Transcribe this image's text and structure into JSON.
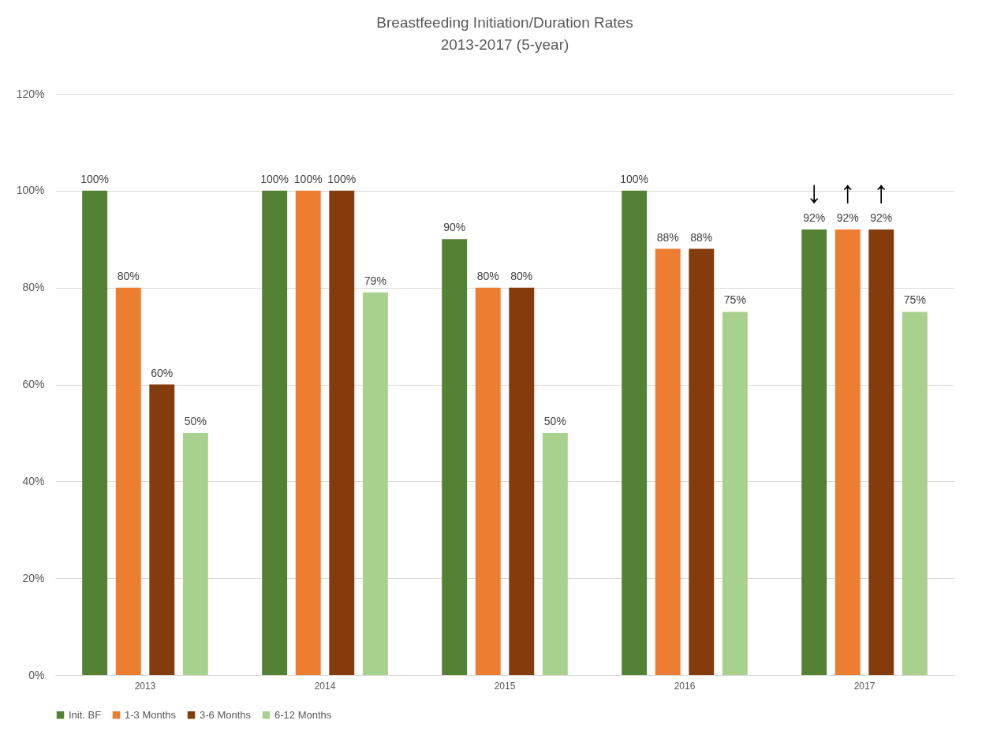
{
  "chart_data": {
    "type": "bar",
    "title": [
      "Breastfeeding Initiation/Duration Rates",
      "2013-2017 (5-year)"
    ],
    "categories": [
      "2013",
      "2014",
      "2015",
      "2016",
      "2017"
    ],
    "series": [
      {
        "name": "Init. BF",
        "color": "#548235",
        "values": [
          100,
          100,
          90,
          100,
          92
        ],
        "value_labels": [
          "100%",
          "100%",
          "90%",
          "100%",
          "92%"
        ]
      },
      {
        "name": "1-3 Months",
        "color": "#ed7d31",
        "values": [
          80,
          100,
          80,
          88,
          92
        ],
        "value_labels": [
          "80%",
          "100%",
          "80%",
          "88%",
          "92%"
        ]
      },
      {
        "name": "3-6 Months",
        "color": "#843c0c",
        "values": [
          60,
          100,
          80,
          88,
          92
        ],
        "value_labels": [
          "60%",
          "100%",
          "80%",
          "88%",
          "92%"
        ]
      },
      {
        "name": "6-12 Months",
        "color": "#a9d18e",
        "values": [
          50,
          79,
          50,
          75,
          75
        ],
        "value_labels": [
          "50%",
          "79%",
          "50%",
          "75%",
          "75%"
        ]
      }
    ],
    "ylim": [
      0,
      120
    ],
    "yticks": [
      {
        "value": 0,
        "label": "0%"
      },
      {
        "value": 20,
        "label": "20%"
      },
      {
        "value": 40,
        "label": "40%"
      },
      {
        "value": 60,
        "label": "60%"
      },
      {
        "value": 80,
        "label": "80%"
      },
      {
        "value": 100,
        "label": "100%"
      },
      {
        "value": 120,
        "label": "120%"
      }
    ],
    "grid": "y",
    "legend": "bottom",
    "annotations": [
      "↓",
      "↑",
      "↑"
    ]
  }
}
